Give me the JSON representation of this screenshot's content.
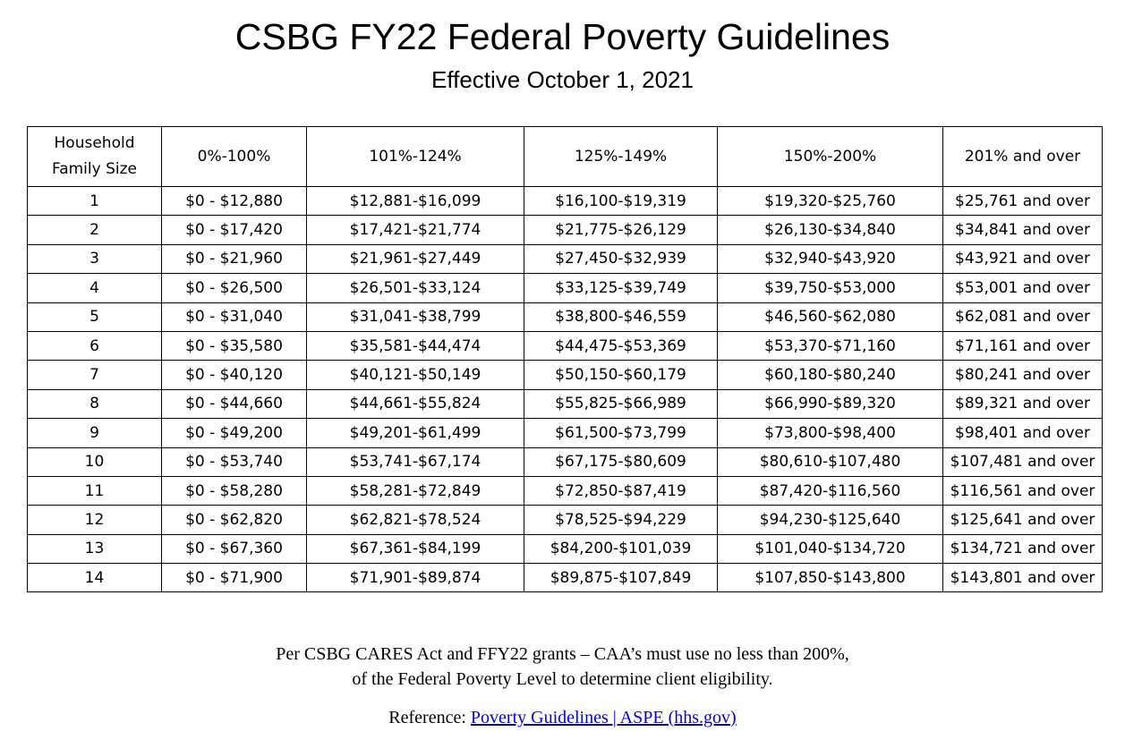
{
  "header": {
    "title": "CSBG FY22 Federal Poverty Guidelines",
    "subtitle": "Effective October 1, 2021"
  },
  "table": {
    "columns": [
      "Household Family Size",
      "0%-100%",
      "101%-124%",
      "125%-149%",
      "150%-200%",
      "201% and over"
    ],
    "rows": [
      [
        "1",
        "$0 - $12,880",
        "$12,881-$16,099",
        "$16,100-$19,319",
        "$19,320-$25,760",
        "$25,761 and over"
      ],
      [
        "2",
        "$0 - $17,420",
        "$17,421-$21,774",
        "$21,775-$26,129",
        "$26,130-$34,840",
        "$34,841 and over"
      ],
      [
        "3",
        "$0 - $21,960",
        "$21,961-$27,449",
        "$27,450-$32,939",
        "$32,940-$43,920",
        "$43,921 and over"
      ],
      [
        "4",
        "$0 - $26,500",
        "$26,501-$33,124",
        "$33,125-$39,749",
        "$39,750-$53,000",
        "$53,001 and over"
      ],
      [
        "5",
        "$0 - $31,040",
        "$31,041-$38,799",
        "$38,800-$46,559",
        "$46,560-$62,080",
        "$62,081 and over"
      ],
      [
        "6",
        "$0 - $35,580",
        "$35,581-$44,474",
        "$44,475-$53,369",
        "$53,370-$71,160",
        "$71,161 and over"
      ],
      [
        "7",
        "$0 - $40,120",
        "$40,121-$50,149",
        "$50,150-$60,179",
        "$60,180-$80,240",
        "$80,241 and over"
      ],
      [
        "8",
        "$0 - $44,660",
        "$44,661-$55,824",
        "$55,825-$66,989",
        "$66,990-$89,320",
        "$89,321 and over"
      ],
      [
        "9",
        "$0 - $49,200",
        "$49,201-$61,499",
        "$61,500-$73,799",
        "$73,800-$98,400",
        "$98,401 and over"
      ],
      [
        "10",
        "$0 - $53,740",
        "$53,741-$67,174",
        "$67,175-$80,609",
        "$80,610-$107,480",
        "$107,481 and over"
      ],
      [
        "11",
        "$0 - $58,280",
        "$58,281-$72,849",
        "$72,850-$87,419",
        "$87,420-$116,560",
        "$116,561 and over"
      ],
      [
        "12",
        "$0 - $62,820",
        "$62,821-$78,524",
        "$78,525-$94,229",
        "$94,230-$125,640",
        "$125,641 and over"
      ],
      [
        "13",
        "$0 - $67,360",
        "$67,361-$84,199",
        "$84,200-$101,039",
        "$101,040-$134,720",
        "$134,721 and over"
      ],
      [
        "14",
        "$0 - $71,900",
        "$71,901-$89,874",
        "$89,875-$107,849",
        "$107,850-$143,800",
        "$143,801 and over"
      ]
    ]
  },
  "footer": {
    "note_line1": "Per CSBG CARES Act and FFY22 grants – CAA’s must use no less than 200%,",
    "note_line2": "of the Federal Poverty Level to determine client eligibility.",
    "reference_label": "Reference:",
    "reference_link": "Poverty Guidelines | ASPE (hhs.gov)"
  }
}
